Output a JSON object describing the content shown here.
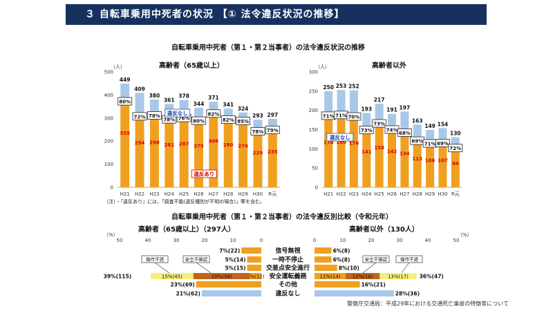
{
  "header": {
    "title": "３ 自転車乗用中死者の状況 【① 法令違反状況の推移】"
  },
  "section1_title": "自転車乗用中死者（第１・第２当事者）の法令違反状況の推移",
  "note": "（注）・「違反あり」には、「調査不能(違反種別が不明の場合)」等を含む。",
  "section2_title": "自転車乗用中死者（第１・第２当事者）の法令違反別比較（令和元年）",
  "source": "警察庁交通局：平成29年における交通死亡事故の特徴等について",
  "colors": {
    "violation": "#f0a020",
    "no_violation": "#a9c8e8",
    "safety": "#c0651b",
    "operation": "#f5f07a"
  },
  "chart_data": [
    {
      "type": "bar",
      "title": "高齢者（65歳以上）",
      "unit": "（人）",
      "categories": [
        "H21",
        "H22",
        "H23",
        "H24",
        "H25",
        "H26",
        "H27",
        "H28",
        "H29",
        "H30",
        "R元"
      ],
      "ylim": [
        0,
        500
      ],
      "yticks": [
        0,
        100,
        200,
        300,
        400,
        500
      ],
      "series": [
        {
          "name": "違反あり",
          "values": [
            359,
            294,
            298,
            281,
            287,
            275,
            306,
            280,
            274,
            229,
            235
          ]
        },
        {
          "name": "違反なし",
          "values": [
            90,
            115,
            82,
            80,
            91,
            69,
            65,
            61,
            50,
            64,
            62
          ]
        }
      ],
      "totals": [
        449,
        409,
        380,
        361,
        378,
        344,
        371,
        341,
        324,
        293,
        297
      ],
      "pct_labels": [
        "80%",
        "72%",
        "78%",
        "78%",
        "76%",
        "80%",
        "82%",
        "82%",
        "85%",
        "78%",
        "79%"
      ],
      "legend": {
        "no_violation": "違反なし",
        "violation": "違反あり"
      }
    },
    {
      "type": "bar",
      "title": "高齢者以外",
      "unit": "（人）",
      "categories": [
        "H21",
        "H22",
        "H23",
        "H24",
        "H25",
        "H26",
        "H27",
        "H28",
        "H29",
        "H30",
        "R元"
      ],
      "ylim": [
        0,
        300
      ],
      "yticks": [
        0,
        50,
        100,
        150,
        200,
        250,
        300
      ],
      "series": [
        {
          "name": "違反あり",
          "values": [
            178,
            180,
            176,
            141,
            158,
            142,
            134,
            113,
            106,
            107,
            94
          ]
        },
        {
          "name": "違反なし",
          "values": [
            72,
            73,
            76,
            52,
            59,
            49,
            63,
            50,
            43,
            47,
            36
          ]
        }
      ],
      "totals": [
        250,
        253,
        252,
        193,
        217,
        191,
        197,
        163,
        149,
        154,
        130
      ],
      "pct_labels": [
        "71%",
        "71%",
        "70%",
        "73%",
        "73%",
        "74%",
        "68%",
        "69%",
        "71%",
        "69%",
        "72%"
      ],
      "legend": {
        "no_violation": "違反なし"
      }
    },
    {
      "type": "bar",
      "orientation": "horizontal",
      "title_left": "高齢者（65歳以上）（297人）",
      "title_right": "高齢者以外（130人）",
      "unit": "（%）",
      "axis_ticks": [
        "50",
        "40",
        "30",
        "20",
        "10",
        "0",
        "10",
        "20",
        "30",
        "40",
        "50"
      ],
      "categories": [
        "信号無視",
        "一時不停止",
        "交差点安全進行",
        "安全運転義務",
        "その他",
        "違反なし"
      ],
      "left": [
        {
          "label": "7%(22)",
          "value": 7
        },
        {
          "label": "5%(14)",
          "value": 5
        },
        {
          "label": "5%(15)",
          "value": 5
        },
        {
          "segments": [
            {
              "label": "4%(12)",
              "value": 4,
              "kind": "violation"
            },
            {
              "label": "20%(58)",
              "value": 20,
              "kind": "safety"
            },
            {
              "label": "15%(45)",
              "value": 15,
              "kind": "operation"
            }
          ],
          "total_label": "39%(115)"
        },
        {
          "label": "23%(69)",
          "value": 23
        },
        {
          "label": "21%(62)",
          "value": 21,
          "kind": "no_violation"
        }
      ],
      "right": [
        {
          "label": "6%(8)",
          "value": 6
        },
        {
          "label": "6%(8)",
          "value": 6
        },
        {
          "label": "8%(10)",
          "value": 8
        },
        {
          "segments": [
            {
              "label": "11%(14)",
              "value": 11,
              "kind": "violation"
            },
            {
              "label": "12%(16)",
              "value": 12,
              "kind": "safety"
            },
            {
              "label": "13%(17)",
              "value": 13,
              "kind": "operation"
            }
          ],
          "total_label": "36%(47)"
        },
        {
          "label": "16%(21)",
          "value": 16
        },
        {
          "label": "28%(36)",
          "value": 28,
          "kind": "no_violation"
        }
      ],
      "callouts": {
        "operation": "操作不適",
        "safety": "安全不確認"
      }
    }
  ]
}
